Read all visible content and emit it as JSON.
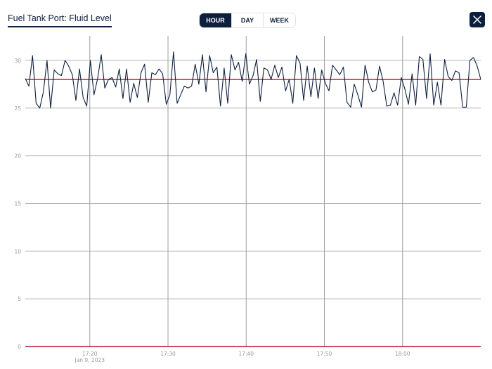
{
  "header": {
    "title": "Fuel Tank Port: Fluid Level",
    "range_tabs": [
      {
        "label": "HOUR",
        "active": true
      },
      {
        "label": "DAY",
        "active": false
      },
      {
        "label": "WEEK",
        "active": false
      }
    ],
    "close_icon": "close-icon"
  },
  "colors": {
    "primary": "#0e1f3d",
    "series_line": "#0e1f3d",
    "threshold_line": "#b0132b",
    "grid": "#b5b5b5",
    "axis_text": "#9a9a9a"
  },
  "chart_data": {
    "type": "line",
    "title": "Fuel Tank Port: Fluid Level",
    "xlabel": "",
    "ylabel": "",
    "ylim": [
      0,
      32
    ],
    "yticks": [
      0,
      5,
      10,
      15,
      20,
      25,
      30
    ],
    "xticks": [
      {
        "label": "17:20",
        "sublabel": "Jan 9, 2023",
        "minute": 20
      },
      {
        "label": "17:30",
        "sublabel": "",
        "minute": 30
      },
      {
        "label": "17:40",
        "sublabel": "",
        "minute": 40
      },
      {
        "label": "17:50",
        "sublabel": "",
        "minute": 50
      },
      {
        "label": "18:00",
        "sublabel": "",
        "minute": 60
      }
    ],
    "x_start_minute": 11.75,
    "x_end_minute": 70.0,
    "grid": true,
    "threshold": 28.0,
    "series": [
      {
        "name": "Fluid Level",
        "values": [
          28.1,
          27.3,
          30.5,
          25.5,
          25.0,
          26.7,
          30.0,
          25.0,
          29.0,
          28.6,
          28.4,
          30.0,
          29.4,
          28.5,
          25.8,
          29.1,
          26.1,
          25.2,
          30.0,
          26.4,
          28.1,
          30.6,
          27.1,
          28.0,
          28.2,
          27.2,
          29.1,
          26.0,
          29.1,
          25.6,
          27.6,
          26.1,
          28.7,
          29.6,
          25.6,
          28.7,
          28.5,
          29.1,
          28.6,
          25.4,
          26.4,
          30.9,
          25.5,
          26.4,
          27.3,
          27.1,
          27.3,
          29.6,
          27.5,
          30.6,
          26.7,
          30.5,
          28.7,
          29.3,
          25.2,
          29.2,
          25.5,
          30.6,
          29.0,
          29.8,
          27.8,
          30.7,
          27.5,
          28.4,
          30.1,
          25.7,
          29.2,
          29.0,
          28.0,
          29.5,
          28.2,
          29.3,
          26.8,
          28.0,
          25.5,
          30.5,
          29.7,
          25.8,
          29.4,
          26.2,
          29.2,
          26.0,
          29.0,
          27.6,
          26.8,
          29.5,
          29.0,
          28.5,
          29.3,
          25.6,
          25.1,
          27.5,
          26.4,
          25.1,
          29.5,
          27.7,
          26.7,
          26.9,
          29.4,
          27.8,
          25.2,
          25.3,
          26.6,
          25.3,
          28.2,
          27.0,
          25.4,
          28.6,
          25.3,
          30.4,
          30.1,
          26.0,
          30.7,
          25.3,
          27.7,
          25.3,
          30.1,
          28.3,
          27.9,
          28.9,
          28.7,
          25.1,
          25.1,
          30.0,
          30.3,
          29.4,
          28.0
        ]
      }
    ]
  }
}
